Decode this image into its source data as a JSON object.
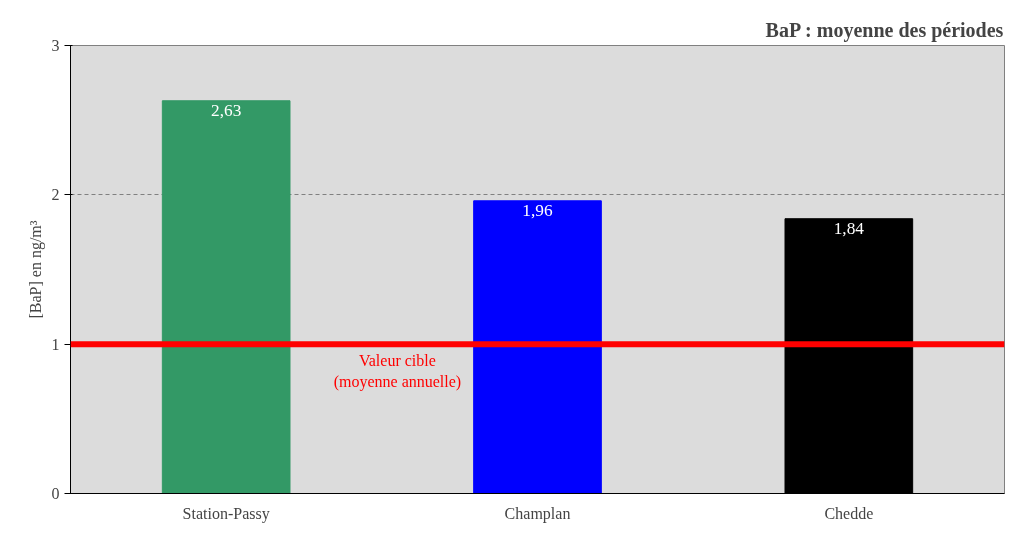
{
  "chart_data": {
    "type": "bar",
    "title": "BaP : moyenne des périodes",
    "ylabel": "[BaP] en ng/m³",
    "categories": [
      "Station-Passy",
      "Champlan",
      "Chedde"
    ],
    "values": [
      2.63,
      1.96,
      1.84
    ],
    "colors": [
      "#339966",
      "#0000ff",
      "#000000"
    ],
    "value_labels": [
      "2,63",
      "1,96",
      "1,84"
    ],
    "ylim": [
      0,
      3
    ],
    "yticks": [
      0,
      1,
      2,
      3
    ],
    "grid": "y",
    "ref_lines": [
      {
        "axis": "y",
        "value": 1,
        "label": "Valeur cible\n(moyenne annuelle)",
        "color": "#ff0000"
      }
    ]
  }
}
